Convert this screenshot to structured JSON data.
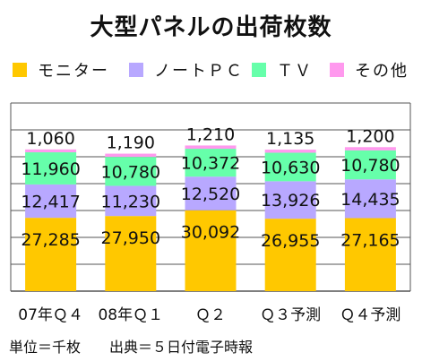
{
  "chart_data": {
    "type": "bar",
    "stacked": true,
    "title": "大型パネルの出荷枚数",
    "categories": [
      "07年Ｑ４",
      "08年Ｑ１",
      "Ｑ２",
      "Ｑ３予測",
      "Ｑ４予測"
    ],
    "series": [
      {
        "name": "モニター",
        "color": "#FFC800",
        "values": [
          27285,
          27950,
          30092,
          26955,
          27165
        ],
        "labels": [
          "27,285",
          "27,950",
          "30,092",
          "26,955",
          "27,165"
        ]
      },
      {
        "name": "ノートＰＣ",
        "color": "#B8A8FF",
        "values": [
          12417,
          11230,
          12520,
          13926,
          14435
        ],
        "labels": [
          "12,417",
          "11,230",
          "12,520",
          "13,926",
          "14,435"
        ]
      },
      {
        "name": "ＴＶ",
        "color": "#66FFAA",
        "values": [
          11960,
          10780,
          10372,
          10630,
          10780
        ],
        "labels": [
          "11,960",
          "10,780",
          "10,372",
          "10,630",
          "10,780"
        ]
      },
      {
        "name": "その他",
        "color": "#FF99EE",
        "values": [
          1060,
          1190,
          1210,
          1135,
          1200
        ],
        "labels": [
          "1,060",
          "1,190",
          "1,210",
          "1,135",
          "1,200"
        ]
      }
    ],
    "ylim": [
      0,
      70000
    ],
    "grid": true,
    "legend_position": "top",
    "footnote": "単位＝千枚　　出典＝５日付電子時報"
  }
}
